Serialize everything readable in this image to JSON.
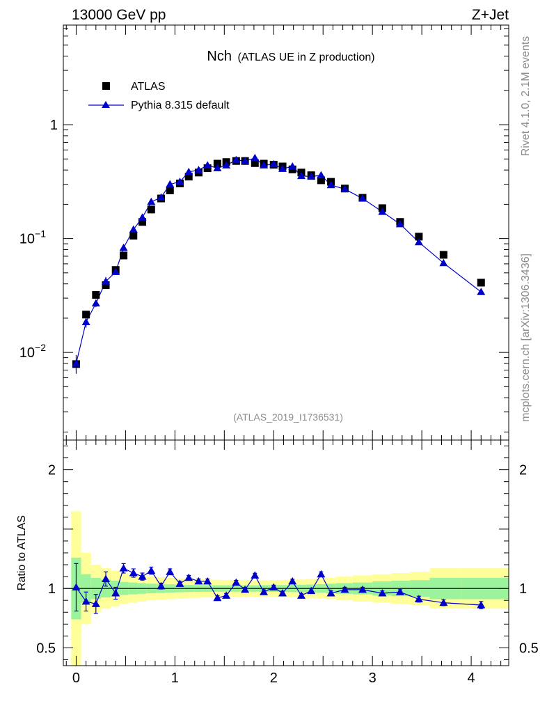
{
  "header": {
    "left_label": "13000 GeV pp",
    "right_label": "Z+Jet"
  },
  "side_labels": {
    "rivet": "Rivet 4.1.0,  2.1M events",
    "mcplots": "mcplots.cern.ch [arXiv:1306.3436]"
  },
  "chart_data": [
    {
      "type": "scatter",
      "panel": "main",
      "title_main": "Nch",
      "title_sub": "(ATLAS UE in Z production)",
      "analysis_id": "(ATLAS_2019_I1736531)",
      "yscale": "log",
      "xlim": [
        -0.13,
        4.38
      ],
      "ylim": [
        0.0017,
        7.5
      ],
      "y_ticks": [
        {
          "value": 0.01,
          "base": "10",
          "exp": "−2"
        },
        {
          "value": 0.1,
          "base": "10",
          "exp": "−1"
        },
        {
          "value": 1,
          "label": "1"
        }
      ],
      "legend": {
        "position": "top-left",
        "entries": [
          {
            "label": "ATLAS",
            "marker": "square",
            "color": "#000000"
          },
          {
            "label": "Pythia 8.315 default",
            "marker": "triangle",
            "color": "#0000cc"
          }
        ]
      },
      "series": [
        {
          "name": "ATLAS",
          "marker": "square",
          "color": "#000000",
          "x": [
            0.0,
            0.1,
            0.2,
            0.3,
            0.4,
            0.48,
            0.58,
            0.67,
            0.76,
            0.86,
            0.95,
            1.05,
            1.14,
            1.24,
            1.33,
            1.43,
            1.52,
            1.62,
            1.71,
            1.81,
            1.9,
            2.0,
            2.09,
            2.19,
            2.28,
            2.38,
            2.48,
            2.58,
            2.72,
            2.9,
            3.1,
            3.28,
            3.47,
            3.72,
            4.1
          ],
          "y": [
            0.0079,
            0.0215,
            0.032,
            0.039,
            0.053,
            0.071,
            0.106,
            0.14,
            0.18,
            0.225,
            0.265,
            0.305,
            0.35,
            0.38,
            0.415,
            0.455,
            0.47,
            0.48,
            0.48,
            0.46,
            0.455,
            0.445,
            0.43,
            0.405,
            0.38,
            0.36,
            0.325,
            0.315,
            0.275,
            0.228,
            0.185,
            0.14,
            0.104,
            0.072,
            0.041
          ]
        },
        {
          "name": "Pythia 8.315 default",
          "marker": "triangle",
          "color": "#0000cc",
          "x": [
            0.0,
            0.1,
            0.2,
            0.3,
            0.4,
            0.48,
            0.58,
            0.67,
            0.76,
            0.86,
            0.95,
            1.05,
            1.14,
            1.24,
            1.33,
            1.43,
            1.52,
            1.62,
            1.71,
            1.81,
            1.9,
            2.0,
            2.09,
            2.19,
            2.28,
            2.38,
            2.48,
            2.58,
            2.72,
            2.9,
            3.1,
            3.28,
            3.47,
            3.72,
            4.1
          ],
          "y": [
            0.008,
            0.0185,
            0.027,
            0.042,
            0.051,
            0.083,
            0.12,
            0.153,
            0.21,
            0.23,
            0.3,
            0.315,
            0.385,
            0.4,
            0.44,
            0.415,
            0.44,
            0.49,
            0.48,
            0.51,
            0.44,
            0.45,
            0.41,
            0.43,
            0.355,
            0.35,
            0.36,
            0.295,
            0.272,
            0.225,
            0.172,
            0.134,
            0.093,
            0.061,
            0.034
          ],
          "yerr": [
            0.0015,
            0.002,
            0.002,
            0.004,
            0.003,
            0.004,
            0.005,
            0.006,
            0.007,
            0.008,
            0.009,
            0.01,
            0.011,
            0.012,
            0.012,
            0.013,
            0.013,
            0.014,
            0.014,
            0.014,
            0.013,
            0.013,
            0.012,
            0.012,
            0.011,
            0.01,
            0.01,
            0.009,
            0.008,
            0.007,
            0.006,
            0.005,
            0.004,
            0.003,
            0.002
          ]
        }
      ]
    },
    {
      "type": "scatter",
      "panel": "ratio",
      "ylabel": "Ratio to ATLAS",
      "yscale": "linear",
      "xlim": [
        -0.13,
        4.38
      ],
      "ylim": [
        0.35,
        2.25
      ],
      "x_ticks": [
        "0",
        "1",
        "2",
        "3",
        "4"
      ],
      "y_ticks": [
        "0.5",
        "1",
        "2"
      ],
      "reference_line": 1.0,
      "bands": {
        "colors": {
          "stat": "#9bf49b",
          "total": "#ffff99"
        },
        "bin_edges": [
          -0.05,
          0.05,
          0.15,
          0.25,
          0.35,
          0.44,
          0.53,
          0.62,
          0.71,
          0.81,
          0.9,
          1.0,
          1.09,
          1.19,
          1.28,
          1.38,
          1.47,
          1.57,
          1.66,
          1.76,
          1.85,
          1.95,
          2.04,
          2.14,
          2.23,
          2.33,
          2.43,
          2.53,
          2.63,
          2.8,
          3.0,
          3.19,
          3.38,
          3.58,
          3.9,
          4.38
        ],
        "stat_half_width": [
          0.26,
          0.12,
          0.09,
          0.075,
          0.065,
          0.055,
          0.05,
          0.045,
          0.04,
          0.038,
          0.035,
          0.032,
          0.03,
          0.029,
          0.028,
          0.027,
          0.027,
          0.027,
          0.027,
          0.027,
          0.028,
          0.028,
          0.029,
          0.03,
          0.031,
          0.033,
          0.036,
          0.04,
          0.045,
          0.05,
          0.06,
          0.065,
          0.07,
          0.09,
          0.09
        ],
        "total_half_width": [
          0.65,
          0.3,
          0.2,
          0.17,
          0.15,
          0.13,
          0.12,
          0.11,
          0.1,
          0.095,
          0.09,
          0.085,
          0.08,
          0.078,
          0.075,
          0.073,
          0.072,
          0.07,
          0.07,
          0.07,
          0.07,
          0.07,
          0.072,
          0.074,
          0.076,
          0.08,
          0.085,
          0.09,
          0.1,
          0.11,
          0.12,
          0.13,
          0.14,
          0.17,
          0.17
        ]
      },
      "series": [
        {
          "name": "Pythia 8.315 default / ATLAS",
          "color": "#0000cc",
          "x": [
            0.0,
            0.1,
            0.2,
            0.3,
            0.4,
            0.48,
            0.58,
            0.67,
            0.76,
            0.86,
            0.95,
            1.05,
            1.14,
            1.24,
            1.33,
            1.43,
            1.52,
            1.62,
            1.71,
            1.81,
            1.9,
            2.0,
            2.09,
            2.19,
            2.28,
            2.38,
            2.48,
            2.58,
            2.72,
            2.9,
            3.1,
            3.28,
            3.47,
            3.72,
            4.1
          ],
          "y": [
            1.01,
            0.89,
            0.87,
            1.08,
            0.96,
            1.17,
            1.13,
            1.1,
            1.15,
            1.02,
            1.14,
            1.04,
            1.09,
            1.06,
            1.06,
            0.92,
            0.94,
            1.05,
            0.99,
            1.11,
            0.97,
            1.01,
            0.96,
            1.06,
            0.94,
            0.98,
            1.12,
            0.96,
            0.99,
            0.99,
            0.96,
            0.97,
            0.91,
            0.88,
            0.86
          ],
          "yerr": [
            0.2,
            0.08,
            0.08,
            0.06,
            0.05,
            0.04,
            0.035,
            0.03,
            0.03,
            0.025,
            0.025,
            0.02,
            0.02,
            0.02,
            0.02,
            0.018,
            0.018,
            0.018,
            0.018,
            0.018,
            0.018,
            0.018,
            0.018,
            0.018,
            0.018,
            0.02,
            0.02,
            0.02,
            0.02,
            0.02,
            0.02,
            0.02,
            0.025,
            0.025,
            0.03
          ]
        }
      ]
    }
  ]
}
